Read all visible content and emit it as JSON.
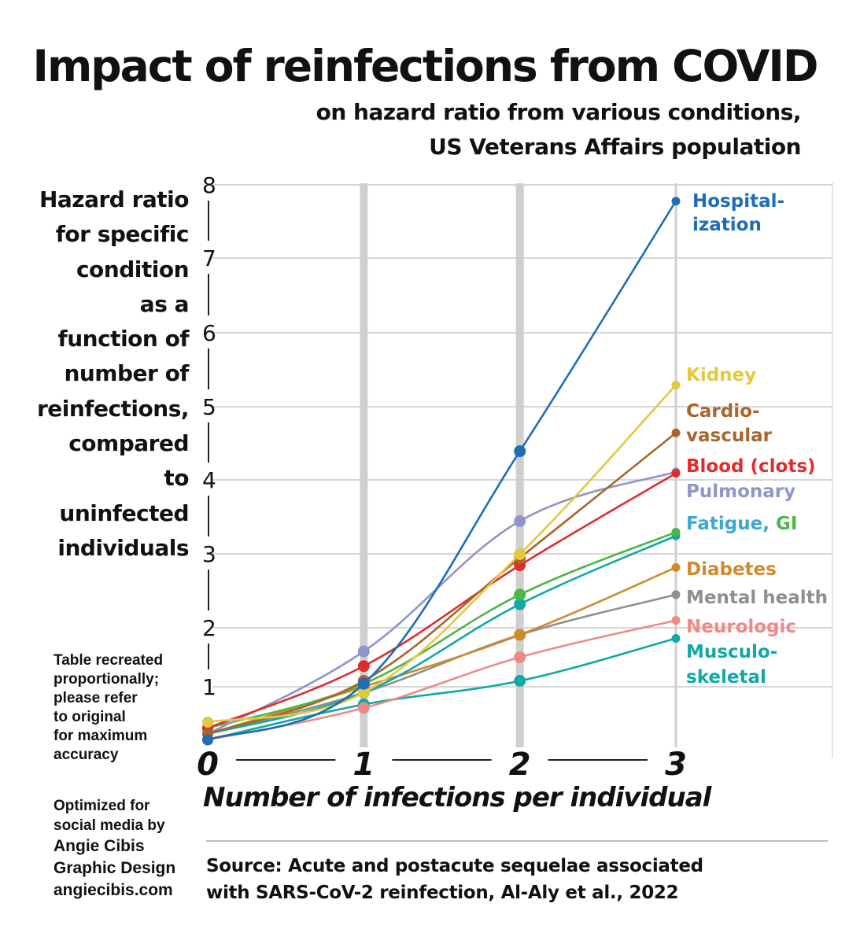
{
  "chart_data": {
    "type": "line",
    "title": "Impact of reinfections from COVID",
    "subtitle": [
      "on hazard ratio from various conditions,",
      "US Veterans Affairs population"
    ],
    "ylabel": [
      "Hazard ratio",
      "for specific",
      "condition",
      "as a",
      "function of",
      "number of",
      "reinfections,",
      "compared",
      "to",
      "uninfected",
      "individuals"
    ],
    "xlabel": "Number of infections per individual",
    "x": [
      0,
      1,
      2,
      3
    ],
    "x_tick_labels": [
      "0",
      "1",
      "2",
      "3"
    ],
    "y_tick_labels": [
      "1",
      "2",
      "3",
      "4",
      "5",
      "6",
      "7",
      "8"
    ],
    "y_ticks": [
      1,
      2,
      3,
      4,
      5,
      6,
      7,
      8
    ],
    "ylim": [
      0.5,
      8.2
    ],
    "grid": true,
    "series": [
      {
        "name": "Hospitalization",
        "label_lines": [
          "Hospital-",
          "ization"
        ],
        "color": "#1f6db5",
        "values": [
          0.55,
          1.05,
          4.4,
          7.8
        ]
      },
      {
        "name": "Kidney",
        "label_lines": [
          "Kidney"
        ],
        "color": "#e3c93e",
        "values": [
          0.7,
          0.95,
          3.0,
          5.3
        ]
      },
      {
        "name": "Cardiovascular",
        "label_lines": [
          "Cardio-",
          "vascular"
        ],
        "color": "#a8662b",
        "values": [
          0.6,
          1.1,
          2.95,
          4.65
        ]
      },
      {
        "name": "Blood (clots)",
        "label_lines": [
          "Blood (clots)"
        ],
        "color": "#e22b2b",
        "values": [
          0.65,
          1.35,
          2.85,
          4.1
        ]
      },
      {
        "name": "Pulmonary",
        "label_lines": [
          "Pulmonary"
        ],
        "color": "#8f95c9",
        "values": [
          0.6,
          1.6,
          3.45,
          4.12
        ]
      },
      {
        "name": "Fatigue, GI",
        "label_lines": [
          "Fatigue, GI"
        ],
        "color": "#4cb648",
        "secondary_color": "#11a8a8",
        "values": [
          0.65,
          1.05,
          2.45,
          3.3
        ]
      },
      {
        "name": "Fatigue, GI (second)",
        "label_lines": [],
        "color": "#11a8a8",
        "values": [
          0.6,
          0.95,
          2.32,
          3.25
        ]
      },
      {
        "name": "Diabetes",
        "label_lines": [
          "Diabetes"
        ],
        "color": "#d18a2b",
        "values": [
          0.6,
          1.0,
          1.88,
          2.82
        ]
      },
      {
        "name": "Mental health",
        "label_lines": [
          "Mental health"
        ],
        "color": "#8f8f8f",
        "values": [
          0.6,
          0.95,
          1.88,
          2.45
        ]
      },
      {
        "name": "Neurologic",
        "label_lines": [
          "Neurologic"
        ],
        "color": "#ec8b85",
        "values": [
          0.55,
          0.82,
          1.5,
          2.1
        ]
      },
      {
        "name": "Musculoskeletal",
        "label_lines": [
          "Musculo-",
          "skeletal"
        ],
        "color": "#11a8a8",
        "values": [
          0.55,
          0.85,
          1.1,
          1.82
        ]
      }
    ]
  },
  "labels": {
    "fatigue_part1": "Fatigue, ",
    "fatigue_part2": "GI"
  },
  "note_lines": [
    "Table recreated",
    "proportionally;",
    "please refer",
    "to original",
    "for maximum",
    "accuracy"
  ],
  "credit": {
    "line1": "Optimized for",
    "line2": "social media by",
    "line3": "Angie Cibis",
    "line4": "Graphic Design",
    "line5": "angiecibis.com"
  },
  "source": {
    "line1": "Source: Acute and postacute sequelae associated",
    "line2": "with SARS-CoV-2 reinfection, Al-Aly et al., 2022"
  }
}
